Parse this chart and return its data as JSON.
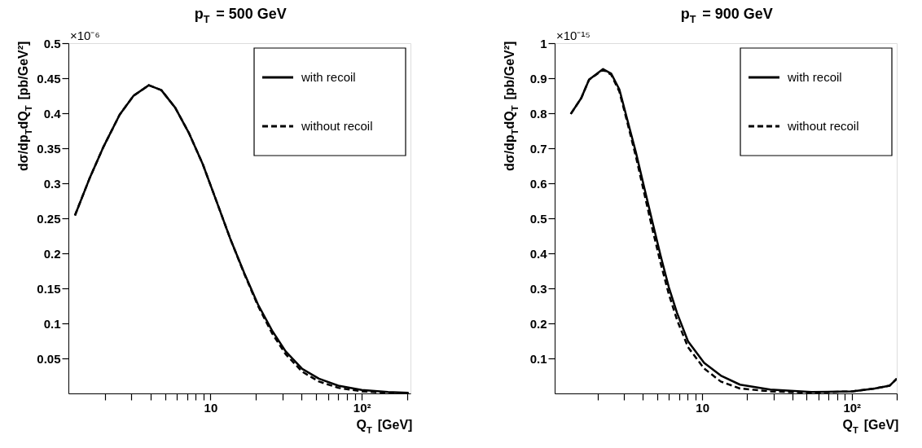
{
  "chart_data": [
    {
      "type": "line",
      "title": "p$_{T}$ = 500 GeV",
      "xlabel": "Q$_{T}$ [GeV]",
      "ylabel": "dσ/dp$_{T}$dQ$_{T}$ [pb/GeV²]",
      "annotations": [
        "×10⁻⁶"
      ],
      "log": "x",
      "legend": "top right",
      "grid": false,
      "xlim": [
        1.15,
        210
      ],
      "ylim": [
        0,
        0.5
      ],
      "xticks": [
        {
          "value": 2,
          "label": null
        },
        {
          "value": 3,
          "label": null
        },
        {
          "value": 4,
          "label": null
        },
        {
          "value": 5,
          "label": null
        },
        {
          "value": 6,
          "label": null
        },
        {
          "value": 7,
          "label": null
        },
        {
          "value": 8,
          "label": null
        },
        {
          "value": 9,
          "label": null
        },
        10,
        {
          "value": 20,
          "label": null
        },
        {
          "value": 30,
          "label": null
        },
        {
          "value": 40,
          "label": null
        },
        {
          "value": 50,
          "label": null
        },
        {
          "value": 60,
          "label": null
        },
        {
          "value": 70,
          "label": null
        },
        {
          "value": 80,
          "label": null
        },
        {
          "value": 90,
          "label": null
        },
        {
          "value": 100,
          "label": "10²"
        },
        {
          "value": 200,
          "label": null
        }
      ],
      "yticks": [
        0.05,
        0.1,
        0.15,
        0.2,
        0.25,
        0.3,
        0.35,
        0.4,
        0.45,
        0.5
      ],
      "series": [
        {
          "name": "with recoil",
          "color": "#000000",
          "line_style": "solid",
          "x": [
            1.27,
            1.58,
            1.95,
            2.51,
            3.1,
            3.91,
            4.73,
            5.84,
            7.19,
            8.9,
            10.97,
            13.5,
            16.7,
            20.6,
            25.5,
            31.4,
            40.4,
            52.1,
            70,
            100,
            149,
            204
          ],
          "values": [
            0.254,
            0.306,
            0.351,
            0.398,
            0.425,
            0.44,
            0.433,
            0.408,
            0.372,
            0.327,
            0.274,
            0.221,
            0.172,
            0.127,
            0.09,
            0.06,
            0.035,
            0.021,
            0.011,
            0.005,
            0.002,
            0.001
          ]
        },
        {
          "name": "without recoil",
          "color": "#000000",
          "line_style": "dashed",
          "x": [
            1.27,
            1.58,
            1.95,
            2.51,
            3.1,
            3.91,
            4.73,
            5.84,
            7.19,
            8.9,
            10.97,
            13.5,
            16.7,
            20.6,
            25.5,
            31.4,
            40.4,
            52.1,
            70,
            100,
            149,
            204
          ],
          "values": [
            0.254,
            0.306,
            0.351,
            0.398,
            0.425,
            0.44,
            0.433,
            0.408,
            0.372,
            0.327,
            0.274,
            0.221,
            0.171,
            0.125,
            0.086,
            0.056,
            0.031,
            0.017,
            0.008,
            0.003,
            0.001,
            0
          ]
        }
      ]
    },
    {
      "type": "line",
      "title": "p$_{T}$ = 900 GeV",
      "xlabel": "Q$_{T}$ [GeV]",
      "ylabel": "dσ/dp$_{T}$dQ$_{T}$ [pb/GeV²]",
      "annotations": [
        "×10⁻¹⁵"
      ],
      "log": "x",
      "legend": "top right",
      "grid": false,
      "xlim": [
        1.03,
        200
      ],
      "ylim": [
        0,
        1
      ],
      "xticks": [
        {
          "value": 2,
          "label": null
        },
        {
          "value": 3,
          "label": null
        },
        {
          "value": 4,
          "label": null
        },
        {
          "value": 5,
          "label": null
        },
        {
          "value": 6,
          "label": null
        },
        {
          "value": 7,
          "label": null
        },
        {
          "value": 8,
          "label": null
        },
        {
          "value": 9,
          "label": null
        },
        10,
        {
          "value": 20,
          "label": null
        },
        {
          "value": 30,
          "label": null
        },
        {
          "value": 40,
          "label": null
        },
        {
          "value": 50,
          "label": null
        },
        {
          "value": 60,
          "label": null
        },
        {
          "value": 70,
          "label": null
        },
        {
          "value": 80,
          "label": null
        },
        {
          "value": 90,
          "label": null
        },
        {
          "value": 100,
          "label": "10²"
        },
        {
          "value": 200,
          "label": null
        }
      ],
      "yticks": [
        0.1,
        0.2,
        0.3,
        0.4,
        0.5,
        0.6,
        0.7,
        0.8,
        0.9,
        1
      ],
      "series": [
        {
          "name": "with recoil",
          "color": "#000000",
          "line_style": "solid",
          "x": [
            1.32,
            1.55,
            1.75,
            2.17,
            2.46,
            2.79,
            3.17,
            3.6,
            4.08,
            4.63,
            5.26,
            5.97,
            6.78,
            8.03,
            10.3,
            13.3,
            17.9,
            28.5,
            53.7,
            101,
            142,
            179,
            200
          ],
          "values": [
            0.798,
            0.843,
            0.896,
            0.926,
            0.913,
            0.868,
            0.778,
            0.688,
            0.59,
            0.492,
            0.394,
            0.304,
            0.23,
            0.149,
            0.087,
            0.051,
            0.025,
            0.011,
            0.004,
            0.006,
            0.014,
            0.022,
            0.042
          ]
        },
        {
          "name": "without recoil",
          "color": "#000000",
          "line_style": "dashed",
          "x": [
            1.32,
            1.55,
            1.75,
            2.17,
            2.46,
            2.79,
            3.17,
            3.6,
            4.08,
            4.63,
            5.26,
            5.97,
            6.78,
            8.03,
            10.3,
            13.3,
            17.9,
            28.5,
            53.7,
            101,
            142,
            179,
            200
          ],
          "values": [
            0.798,
            0.843,
            0.896,
            0.924,
            0.91,
            0.862,
            0.77,
            0.676,
            0.574,
            0.471,
            0.373,
            0.284,
            0.21,
            0.132,
            0.071,
            0.034,
            0.014,
            0.006,
            0.002,
            0.006,
            0.014,
            0.022,
            0.042
          ]
        }
      ]
    }
  ]
}
